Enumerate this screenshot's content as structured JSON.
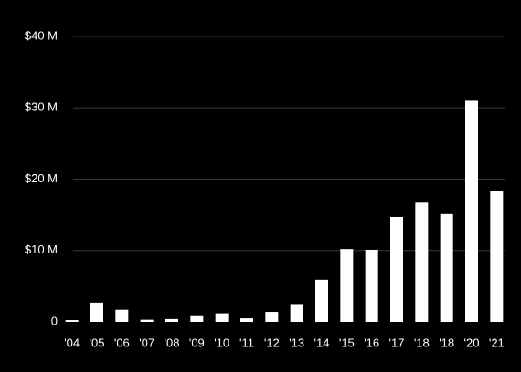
{
  "chart_data": {
    "type": "bar",
    "categories": [
      "'04",
      "'05",
      "'06",
      "'07",
      "'08",
      "'09",
      "'10",
      "'11",
      "'12",
      "'13",
      "'14",
      "'15",
      "'16",
      "'17",
      "'18",
      "'18",
      "'20",
      "'21"
    ],
    "values": [
      0.25,
      2.7,
      1.7,
      0.3,
      0.4,
      0.8,
      1.2,
      0.5,
      1.4,
      2.5,
      5.9,
      10.2,
      10.1,
      14.7,
      16.7,
      15.1,
      31.0,
      18.3
    ],
    "color": "#ffffff",
    "ylim": [
      0,
      40
    ],
    "yticks": [
      0,
      {
        "value": 10,
        "label": "$10 M"
      },
      {
        "value": 20,
        "label": "$20 M"
      },
      {
        "value": 30,
        "label": "$30 M"
      },
      {
        "value": 40,
        "label": "$40 M"
      }
    ],
    "grid": true
  }
}
